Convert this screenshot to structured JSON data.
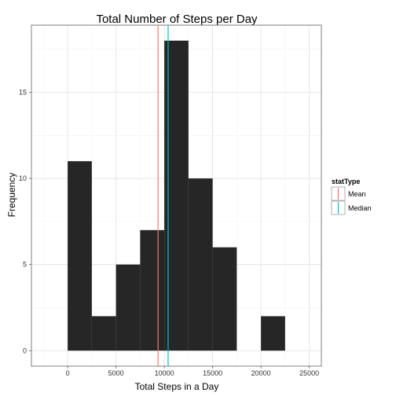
{
  "chart_data": {
    "type": "bar",
    "title": "Total Number of Steps per Day",
    "xlabel": "Total Steps in a Day",
    "ylabel": "Frequency",
    "xlim": [
      -3750,
      26250
    ],
    "ylim": [
      -0.9,
      18.9
    ],
    "x_ticks": [
      0,
      5000,
      10000,
      15000,
      20000,
      25000
    ],
    "y_ticks": [
      0,
      5,
      10,
      15
    ],
    "grid": true,
    "bins": [
      {
        "x0": 0,
        "x1": 2500,
        "count": 11
      },
      {
        "x0": 2500,
        "x1": 5000,
        "count": 2
      },
      {
        "x0": 5000,
        "x1": 7500,
        "count": 5
      },
      {
        "x0": 7500,
        "x1": 10000,
        "count": 7
      },
      {
        "x0": 10000,
        "x1": 12500,
        "count": 18
      },
      {
        "x0": 12500,
        "x1": 15000,
        "count": 10
      },
      {
        "x0": 15000,
        "x1": 17500,
        "count": 6
      },
      {
        "x0": 17500,
        "x1": 20000,
        "count": 0
      },
      {
        "x0": 20000,
        "x1": 22500,
        "count": 2
      }
    ],
    "bar_color": "#262626",
    "stat_lines": [
      {
        "name": "Mean",
        "value": 9354,
        "color": "#F8766D"
      },
      {
        "name": "Median",
        "value": 10395,
        "color": "#00BFC4"
      }
    ],
    "legend": {
      "title": "statType",
      "placement": "right"
    }
  }
}
